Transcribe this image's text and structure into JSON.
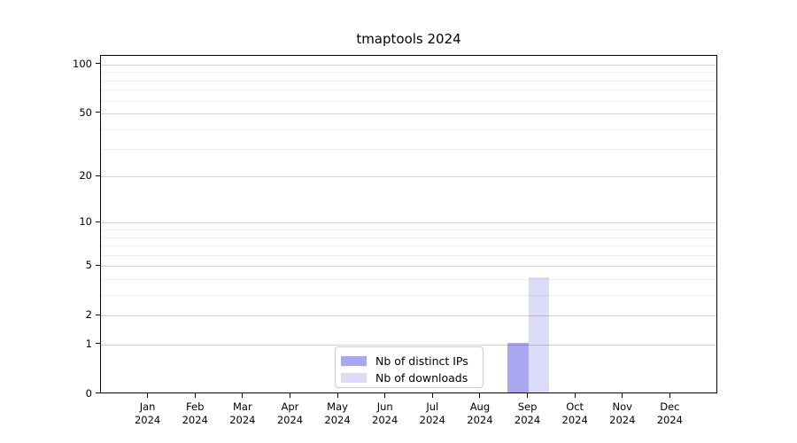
{
  "chart_data": {
    "type": "bar",
    "title": "tmaptools 2024",
    "categories": [
      "Jan",
      "Feb",
      "Mar",
      "Apr",
      "May",
      "Jun",
      "Jul",
      "Aug",
      "Sep",
      "Oct",
      "Nov",
      "Dec"
    ],
    "category_year": "2024",
    "series": [
      {
        "name": "Nb of distinct IPs",
        "color": "#a8a8f0",
        "values": [
          0,
          0,
          0,
          0,
          0,
          0,
          0,
          0,
          1,
          0,
          0,
          0
        ]
      },
      {
        "name": "Nb of downloads",
        "color": "#dcdcf8",
        "values": [
          0,
          0,
          0,
          0,
          0,
          0,
          0,
          0,
          4,
          0,
          0,
          0
        ]
      }
    ],
    "y_scale": "log1p",
    "y_ticks": [
      0,
      1,
      2,
      5,
      10,
      20,
      50,
      100
    ],
    "y_minor_gridlines": [
      3,
      4,
      6,
      7,
      8,
      9,
      30,
      40,
      60,
      70,
      80,
      90
    ],
    "ylim": [
      0,
      113
    ],
    "xlabel": "",
    "ylabel": "",
    "grid": true,
    "legend_position": "lower center",
    "colors": {
      "axis": "#000000",
      "background": "#ffffff",
      "grid_major": "rgba(0,0,0,0.18)",
      "grid_minor": "rgba(0,0,0,0.06)",
      "legend_border": "#cccccc",
      "text": "#000000"
    }
  }
}
